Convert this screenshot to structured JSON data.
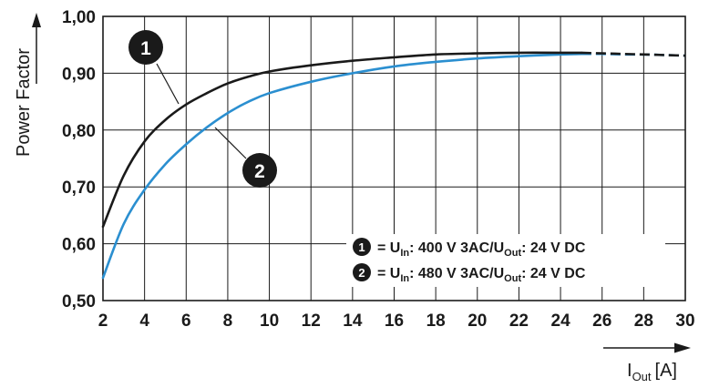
{
  "chart_data": {
    "type": "line",
    "title": "",
    "ylabel": "Power Factor",
    "xlabel": {
      "main": "I",
      "sub": "Out",
      "unit": "[A]"
    },
    "xlim": [
      2,
      30
    ],
    "ylim": [
      0.5,
      1.0
    ],
    "x_ticks": [
      2,
      4,
      6,
      8,
      10,
      12,
      14,
      16,
      18,
      20,
      22,
      24,
      26,
      28,
      30
    ],
    "y_ticks": [
      0.5,
      0.6,
      0.7,
      0.8,
      0.9,
      1.0
    ],
    "x_tick_labels": [
      "2",
      "4",
      "6",
      "8",
      "10",
      "12",
      "14",
      "16",
      "18",
      "20",
      "22",
      "24",
      "26",
      "28",
      "30"
    ],
    "y_tick_labels": [
      "0,50",
      "0,60",
      "0,70",
      "0,80",
      "0,90",
      "1,00"
    ],
    "grid": true,
    "legend_position": "bottom-right",
    "series": [
      {
        "marker": "1",
        "color": "#1a1a1a",
        "legend": {
          "pre": "= U",
          "sub1": "In",
          "mid": ": 400 V 3AC/U",
          "sub2": "Out",
          "post": ": 24 V DC"
        },
        "x": [
          2,
          3,
          4,
          5,
          6,
          7,
          8,
          9,
          10,
          12,
          14,
          16,
          18,
          20,
          22,
          24,
          25
        ],
        "y": [
          0.63,
          0.72,
          0.78,
          0.818,
          0.845,
          0.865,
          0.882,
          0.894,
          0.903,
          0.914,
          0.922,
          0.928,
          0.933,
          0.935,
          0.936,
          0.936,
          0.936
        ],
        "dashed_x": [
          25,
          26,
          27,
          28,
          29,
          30
        ],
        "dashed_y": [
          0.936,
          0.935,
          0.934,
          0.933,
          0.932,
          0.931
        ]
      },
      {
        "marker": "2",
        "color": "#2b8fd0",
        "legend": {
          "pre": "= U",
          "sub1": "In",
          "mid": ": 480 V 3AC/U",
          "sub2": "Out",
          "post": ": 24 V DC"
        },
        "x": [
          2,
          3,
          4,
          5,
          6,
          7,
          8,
          9,
          10,
          12,
          14,
          16,
          18,
          20,
          22,
          24,
          25
        ],
        "y": [
          0.54,
          0.635,
          0.695,
          0.74,
          0.775,
          0.805,
          0.83,
          0.85,
          0.865,
          0.885,
          0.9,
          0.912,
          0.92,
          0.926,
          0.93,
          0.933,
          0.934
        ],
        "dashed_x": [
          25,
          26,
          27,
          28,
          29,
          30
        ],
        "dashed_y": [
          0.934,
          0.934,
          0.933,
          0.933,
          0.932,
          0.931
        ]
      }
    ]
  }
}
